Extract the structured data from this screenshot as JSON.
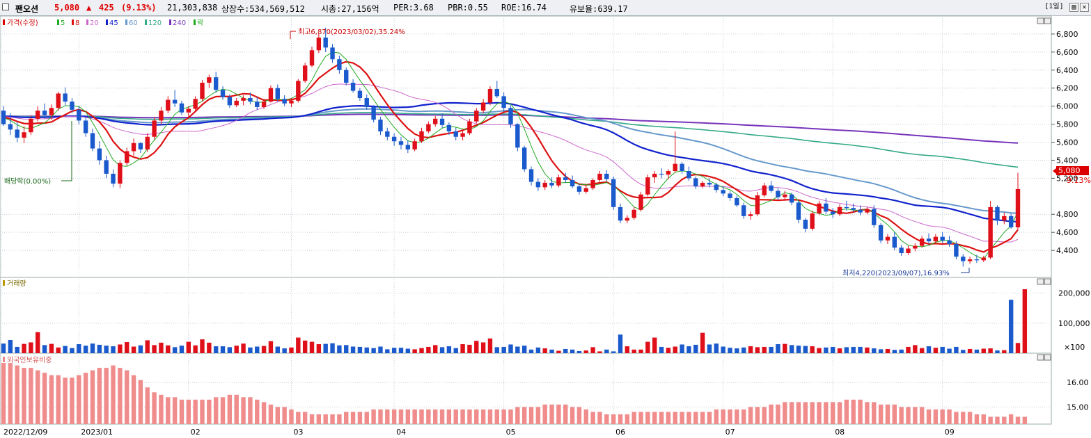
{
  "header": {
    "stock_name": "팬오션",
    "price": "5,080",
    "change_arrow": "▲",
    "change": "425",
    "change_pct": "(9.13%)",
    "volume": "21,303,838",
    "shares": "상장수:534,569,512",
    "mcap": "시총:27,156억",
    "per": "PER:3.68",
    "pbr": "PBR:0.55",
    "roe": "ROE:16.74",
    "reserve": "유보율:639.17",
    "period_button": "[1일]",
    "copy_button": "▤",
    "close_button": "✕"
  },
  "price_panel": {
    "legend_prefix": "가격(수정)",
    "ma_legend": [
      {
        "label": "5",
        "color": "#22aa22"
      },
      {
        "label": "8",
        "color": "#dd1111"
      },
      {
        "label": "20",
        "color": "#cc66cc"
      },
      {
        "label": "45",
        "color": "#1122cc"
      },
      {
        "label": "60",
        "color": "#6699cc"
      },
      {
        "label": "120",
        "color": "#33aa88"
      },
      {
        "label": "240",
        "color": "#7733bb"
      },
      {
        "label": "락",
        "color": "#22aa22"
      }
    ],
    "high_annotation": "최고6,870(2023/03/02),35.24%",
    "low_annotation": "최저4,220(2023/09/07),16.93%",
    "dividend_annotation": "배당락(0.00%)",
    "current_price_label": "5,080",
    "current_pct_label": "9.13%",
    "y_ticks": [
      "6,800",
      "6,600",
      "6,400",
      "6,200",
      "6,000",
      "5,800",
      "5,600",
      "5,400",
      "5,200",
      "4,800",
      "4,600",
      "4,400"
    ]
  },
  "volume_panel": {
    "title": "거래량",
    "y_ticks": [
      "200,000",
      "100,000"
    ],
    "unit": "×100"
  },
  "foreign_panel": {
    "title": "외국인보유비중",
    "y_ticks": [
      "16.00",
      "15.00"
    ]
  },
  "x_axis": {
    "labels": [
      "2022/12/09",
      "2023/01",
      "02",
      "03",
      "04",
      "05",
      "06",
      "07",
      "08",
      "09"
    ]
  },
  "chart_data": {
    "type": "candlestick",
    "candles": [
      [
        5950,
        6000,
        5780,
        5800
      ],
      [
        5800,
        5920,
        5680,
        5740
      ],
      [
        5740,
        5820,
        5600,
        5650
      ],
      [
        5650,
        5780,
        5590,
        5710
      ],
      [
        5710,
        5900,
        5680,
        5860
      ],
      [
        5860,
        6000,
        5830,
        5950
      ],
      [
        5950,
        6030,
        5860,
        5900
      ],
      [
        5900,
        6020,
        5850,
        5980
      ],
      [
        5980,
        6160,
        5950,
        6140
      ],
      [
        6140,
        6210,
        6010,
        6050
      ],
      [
        6050,
        6090,
        5920,
        5960
      ],
      [
        5960,
        6000,
        5800,
        5840
      ],
      [
        5840,
        5890,
        5660,
        5700
      ],
      [
        5700,
        5750,
        5500,
        5530
      ],
      [
        5530,
        5610,
        5350,
        5400
      ],
      [
        5400,
        5450,
        5200,
        5250
      ],
      [
        5250,
        5300,
        5100,
        5140
      ],
      [
        5140,
        5400,
        5090,
        5370
      ],
      [
        5370,
        5540,
        5340,
        5500
      ],
      [
        5500,
        5640,
        5450,
        5590
      ],
      [
        5590,
        5600,
        5480,
        5520
      ],
      [
        5520,
        5700,
        5490,
        5660
      ],
      [
        5660,
        5880,
        5630,
        5840
      ],
      [
        5840,
        5990,
        5800,
        5950
      ],
      [
        5950,
        6110,
        5920,
        6070
      ],
      [
        6070,
        6180,
        5990,
        6030
      ],
      [
        6030,
        6060,
        5900,
        5930
      ],
      [
        5930,
        6000,
        5870,
        5970
      ],
      [
        5970,
        6110,
        5950,
        6080
      ],
      [
        6080,
        6290,
        6050,
        6260
      ],
      [
        6260,
        6350,
        6200,
        6320
      ],
      [
        6320,
        6380,
        6150,
        6180
      ],
      [
        6180,
        6220,
        6070,
        6100
      ],
      [
        6100,
        6130,
        5980,
        6010
      ],
      [
        6010,
        6090,
        5990,
        6060
      ],
      [
        6060,
        6120,
        6010,
        6090
      ],
      [
        6090,
        6150,
        6020,
        6050
      ],
      [
        6050,
        6100,
        5960,
        5990
      ],
      [
        5990,
        6080,
        5970,
        6050
      ],
      [
        6050,
        6230,
        6040,
        6200
      ],
      [
        6200,
        6240,
        6050,
        6080
      ],
      [
        6080,
        6120,
        6000,
        6030
      ],
      [
        6030,
        6090,
        5990,
        6060
      ],
      [
        6060,
        6300,
        6040,
        6280
      ],
      [
        6280,
        6480,
        6260,
        6450
      ],
      [
        6450,
        6660,
        6430,
        6620
      ],
      [
        6620,
        6800,
        6590,
        6760
      ],
      [
        6760,
        6870,
        6600,
        6650
      ],
      [
        6650,
        6690,
        6480,
        6520
      ],
      [
        6520,
        6560,
        6360,
        6400
      ],
      [
        6400,
        6430,
        6230,
        6260
      ],
      [
        6260,
        6300,
        6150,
        6170
      ],
      [
        6170,
        6200,
        6060,
        6090
      ],
      [
        6090,
        6130,
        5960,
        5990
      ],
      [
        5990,
        6010,
        5820,
        5850
      ],
      [
        5850,
        5880,
        5680,
        5720
      ],
      [
        5720,
        5760,
        5620,
        5660
      ],
      [
        5660,
        5700,
        5560,
        5610
      ],
      [
        5610,
        5660,
        5520,
        5570
      ],
      [
        5570,
        5620,
        5480,
        5520
      ],
      [
        5520,
        5640,
        5500,
        5610
      ],
      [
        5610,
        5760,
        5590,
        5720
      ],
      [
        5720,
        5830,
        5700,
        5800
      ],
      [
        5800,
        5890,
        5770,
        5860
      ],
      [
        5860,
        5920,
        5760,
        5790
      ],
      [
        5790,
        5820,
        5680,
        5720
      ],
      [
        5720,
        5760,
        5620,
        5660
      ],
      [
        5660,
        5740,
        5620,
        5700
      ],
      [
        5700,
        5860,
        5680,
        5830
      ],
      [
        5830,
        5980,
        5810,
        5950
      ],
      [
        5950,
        6080,
        5920,
        6040
      ],
      [
        6040,
        6220,
        6010,
        6190
      ],
      [
        6190,
        6280,
        6090,
        6110
      ],
      [
        6110,
        6150,
        5940,
        5980
      ],
      [
        5980,
        6010,
        5760,
        5800
      ],
      [
        5800,
        5810,
        5500,
        5540
      ],
      [
        5540,
        5560,
        5270,
        5300
      ],
      [
        5300,
        5330,
        5120,
        5160
      ],
      [
        5160,
        5200,
        5060,
        5100
      ],
      [
        5100,
        5180,
        5070,
        5150
      ],
      [
        5150,
        5210,
        5090,
        5120
      ],
      [
        5120,
        5240,
        5100,
        5210
      ],
      [
        5210,
        5260,
        5150,
        5180
      ],
      [
        5180,
        5230,
        5090,
        5110
      ],
      [
        5110,
        5130,
        5020,
        5050
      ],
      [
        5050,
        5120,
        5030,
        5090
      ],
      [
        5090,
        5200,
        5070,
        5180
      ],
      [
        5180,
        5280,
        5160,
        5250
      ],
      [
        5250,
        5290,
        5170,
        5190
      ],
      [
        5190,
        5220,
        4850,
        4880
      ],
      [
        4880,
        4920,
        4700,
        4730
      ],
      [
        4730,
        4790,
        4700,
        4760
      ],
      [
        4760,
        4880,
        4740,
        4850
      ],
      [
        4850,
        5050,
        4830,
        5020
      ],
      [
        5020,
        5240,
        5000,
        5210
      ],
      [
        5210,
        5280,
        5150,
        5250
      ],
      [
        5250,
        5310,
        5200,
        5240
      ],
      [
        5240,
        5300,
        5190,
        5280
      ],
      [
        5280,
        5720,
        5260,
        5360
      ],
      [
        5360,
        5380,
        5250,
        5280
      ],
      [
        5280,
        5330,
        5170,
        5200
      ],
      [
        5200,
        5220,
        5080,
        5110
      ],
      [
        5110,
        5170,
        5090,
        5150
      ],
      [
        5150,
        5200,
        5100,
        5130
      ],
      [
        5130,
        5150,
        5040,
        5070
      ],
      [
        5070,
        5110,
        5000,
        5030
      ],
      [
        5030,
        5060,
        4950,
        4980
      ],
      [
        4980,
        5010,
        4880,
        4900
      ],
      [
        4900,
        4930,
        4750,
        4780
      ],
      [
        4780,
        4830,
        4740,
        4800
      ],
      [
        4800,
        5050,
        4780,
        5010
      ],
      [
        5010,
        5150,
        4990,
        5120
      ],
      [
        5120,
        5170,
        5040,
        5060
      ],
      [
        5060,
        5090,
        4960,
        4990
      ],
      [
        4990,
        5060,
        4950,
        5020
      ],
      [
        5020,
        5040,
        4900,
        4930
      ],
      [
        4930,
        4950,
        4700,
        4740
      ],
      [
        4740,
        4760,
        4600,
        4640
      ],
      [
        4640,
        4840,
        4620,
        4810
      ],
      [
        4810,
        4950,
        4790,
        4920
      ],
      [
        4920,
        4980,
        4800,
        4830
      ],
      [
        4830,
        4870,
        4760,
        4800
      ],
      [
        4800,
        4910,
        4780,
        4880
      ],
      [
        4880,
        4950,
        4840,
        4870
      ],
      [
        4870,
        4920,
        4820,
        4850
      ],
      [
        4850,
        4900,
        4790,
        4820
      ],
      [
        4820,
        4880,
        4800,
        4860
      ],
      [
        4860,
        4900,
        4650,
        4680
      ],
      [
        4680,
        4700,
        4480,
        4510
      ],
      [
        4510,
        4580,
        4470,
        4550
      ],
      [
        4550,
        4600,
        4400,
        4430
      ],
      [
        4430,
        4460,
        4340,
        4370
      ],
      [
        4370,
        4450,
        4350,
        4420
      ],
      [
        4420,
        4480,
        4390,
        4450
      ],
      [
        4450,
        4560,
        4430,
        4530
      ],
      [
        4530,
        4590,
        4470,
        4500
      ],
      [
        4500,
        4580,
        4480,
        4550
      ],
      [
        4550,
        4600,
        4480,
        4510
      ],
      [
        4510,
        4560,
        4440,
        4470
      ],
      [
        4470,
        4500,
        4300,
        4330
      ],
      [
        4330,
        4360,
        4220,
        4280
      ],
      [
        4280,
        4330,
        4250,
        4300
      ],
      [
        4300,
        4350,
        4260,
        4290
      ],
      [
        4290,
        4340,
        4270,
        4320
      ],
      [
        4320,
        4950,
        4300,
        4880
      ],
      [
        4880,
        4900,
        4680,
        4730
      ],
      [
        4730,
        4820,
        4690,
        4780
      ],
      [
        4780,
        4810,
        4640,
        4655
      ],
      [
        4655,
        5260,
        4630,
        5080
      ]
    ],
    "volume": [
      32,
      44,
      21,
      31,
      36,
      70,
      27,
      31,
      19,
      24,
      17,
      30,
      25,
      32,
      28,
      25,
      23,
      29,
      37,
      22,
      26,
      43,
      27,
      35,
      26,
      20,
      25,
      38,
      26,
      46,
      35,
      23,
      23,
      20,
      25,
      32,
      19,
      22,
      24,
      40,
      22,
      16,
      19,
      52,
      42,
      38,
      30,
      31,
      33,
      26,
      27,
      22,
      21,
      19,
      17,
      22,
      13,
      18,
      18,
      15,
      13,
      17,
      21,
      27,
      20,
      23,
      17,
      30,
      28,
      41,
      36,
      49,
      20,
      21,
      29,
      22,
      25,
      12,
      19,
      16,
      12,
      8,
      14,
      12,
      7,
      9,
      20,
      6,
      12,
      6,
      62,
      23,
      12,
      12,
      38,
      52,
      21,
      18,
      22,
      29,
      23,
      28,
      68,
      29,
      32,
      22,
      18,
      16,
      19,
      23,
      20,
      21,
      21,
      30,
      31,
      27,
      25,
      24,
      23,
      17,
      19,
      21,
      16,
      20,
      21,
      21,
      19,
      16,
      13,
      14,
      11,
      12,
      21,
      27,
      17,
      23,
      18,
      21,
      15,
      21,
      11,
      14,
      12,
      15,
      16,
      9,
      10,
      178,
      34,
      213
    ],
    "foreign_ratio": [
      16.8,
      16.8,
      16.7,
      16.6,
      16.6,
      16.5,
      16.4,
      16.3,
      16.3,
      16.2,
      16.2,
      16.3,
      16.4,
      16.5,
      16.6,
      16.6,
      16.7,
      16.6,
      16.5,
      16.3,
      16.1,
      15.8,
      15.6,
      15.5,
      15.4,
      15.4,
      15.3,
      15.3,
      15.3,
      15.3,
      15.3,
      15.4,
      15.4,
      15.5,
      15.5,
      15.4,
      15.4,
      15.3,
      15.2,
      15.1,
      15.0,
      15.0,
      14.9,
      14.8,
      14.8,
      14.7,
      14.7,
      14.7,
      14.7,
      14.7,
      14.8,
      14.8,
      14.8,
      14.8,
      14.9,
      14.9,
      14.9,
      14.9,
      14.9,
      14.9,
      14.9,
      14.9,
      14.9,
      14.9,
      14.9,
      14.9,
      14.9,
      14.9,
      14.9,
      14.9,
      14.9,
      14.9,
      14.9,
      14.9,
      14.9,
      15.0,
      15.0,
      15.0,
      15.0,
      15.1,
      15.1,
      15.1,
      15.1,
      15.0,
      15.0,
      14.9,
      14.8,
      14.8,
      14.7,
      14.7,
      14.7,
      14.7,
      14.8,
      14.8,
      14.8,
      14.8,
      14.8,
      14.8,
      14.8,
      14.8,
      14.8,
      14.8,
      14.8,
      14.8,
      14.9,
      14.9,
      14.9,
      14.9,
      14.9,
      15.0,
      15.0,
      15.0,
      15.1,
      15.1,
      15.2,
      15.2,
      15.2,
      15.2,
      15.2,
      15.2,
      15.2,
      15.2,
      15.2,
      15.3,
      15.3,
      15.3,
      15.2,
      15.2,
      15.1,
      15.1,
      15.1,
      15.0,
      15.0,
      15.0,
      15.0,
      14.9,
      14.9,
      14.9,
      14.9,
      14.8,
      14.8,
      14.8,
      14.7,
      14.7,
      14.6,
      14.6,
      14.6,
      14.7,
      14.6,
      14.6
    ],
    "price_range": [
      4100,
      7000
    ],
    "volume_max": 220,
    "foreign_range": [
      14.3,
      17.2
    ]
  }
}
